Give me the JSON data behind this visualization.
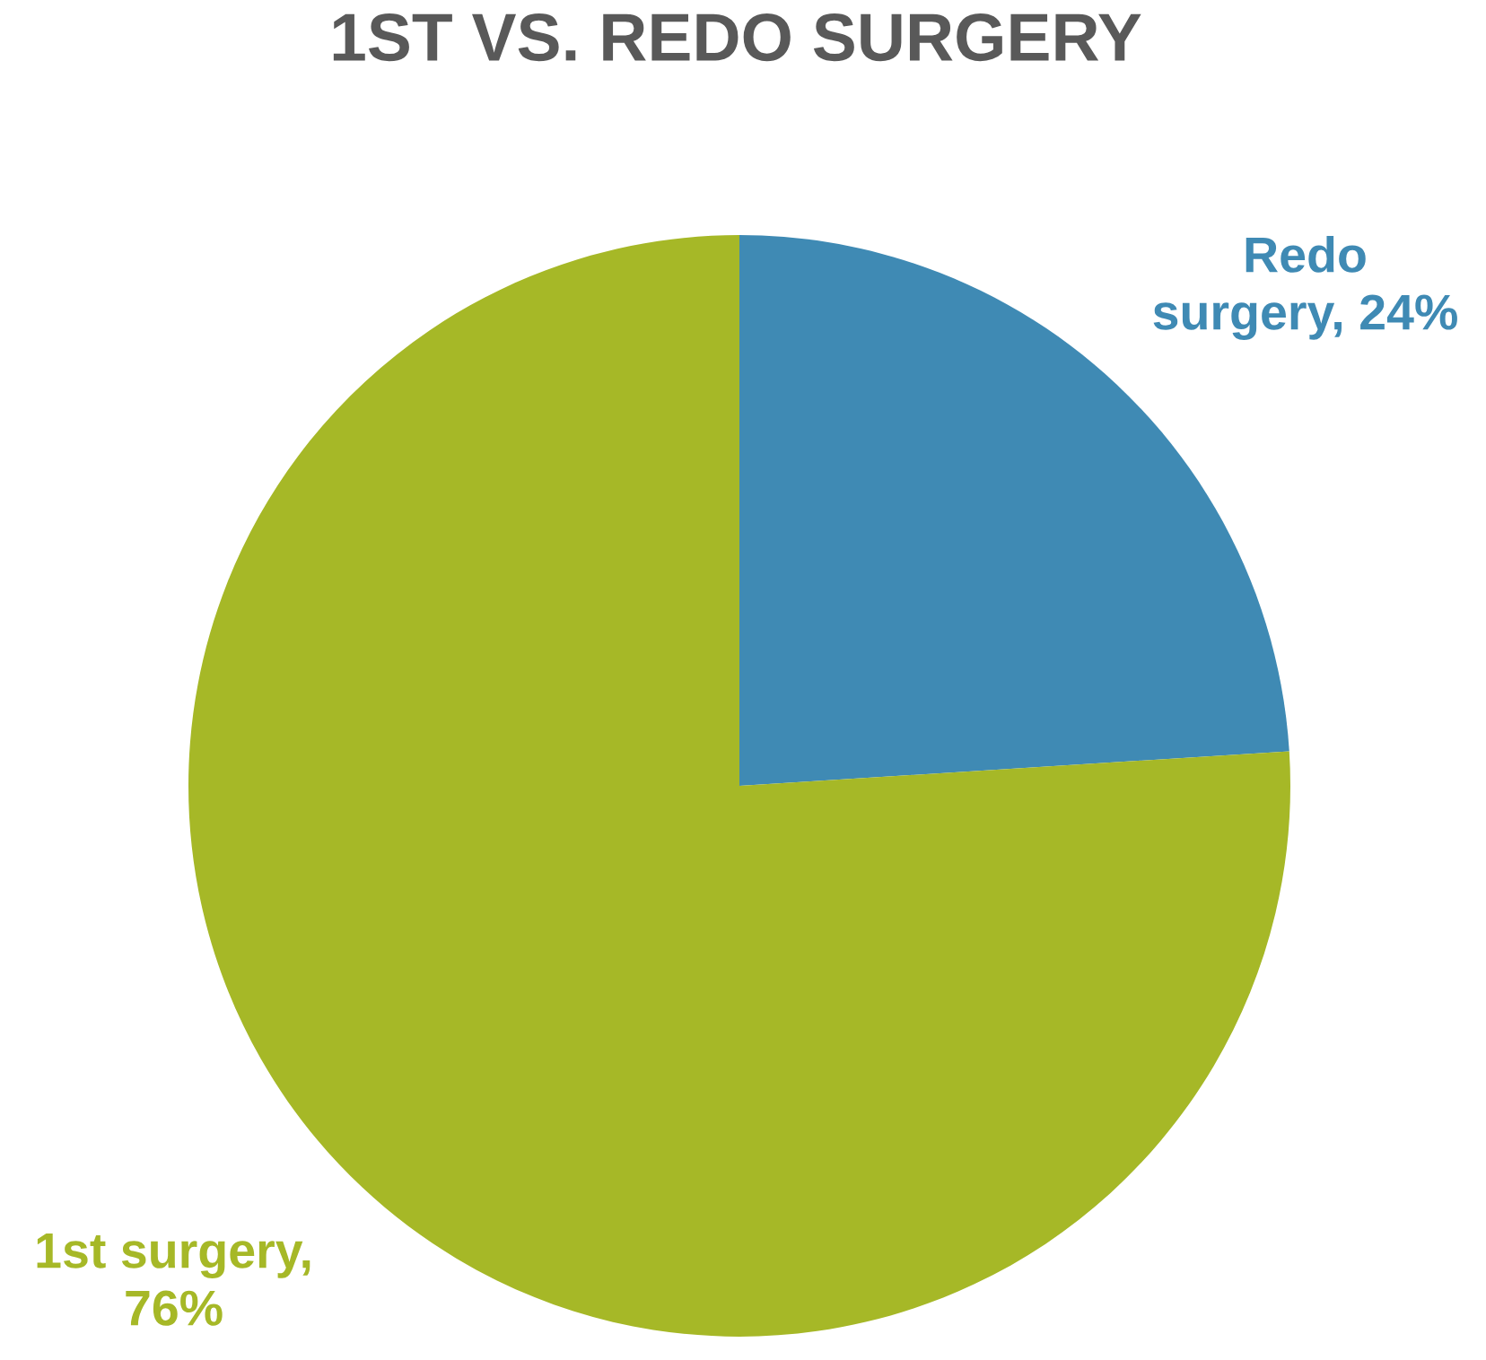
{
  "chart_data": {
    "type": "pie",
    "title": "1ST VS. REDO SURGERY",
    "categories": [
      "Redo surgery",
      "1st surgery"
    ],
    "values": [
      24,
      76
    ],
    "colors": [
      "#3f8ab4",
      "#a6b827"
    ],
    "value_labels": [
      ", 24%",
      ", 76%"
    ]
  }
}
